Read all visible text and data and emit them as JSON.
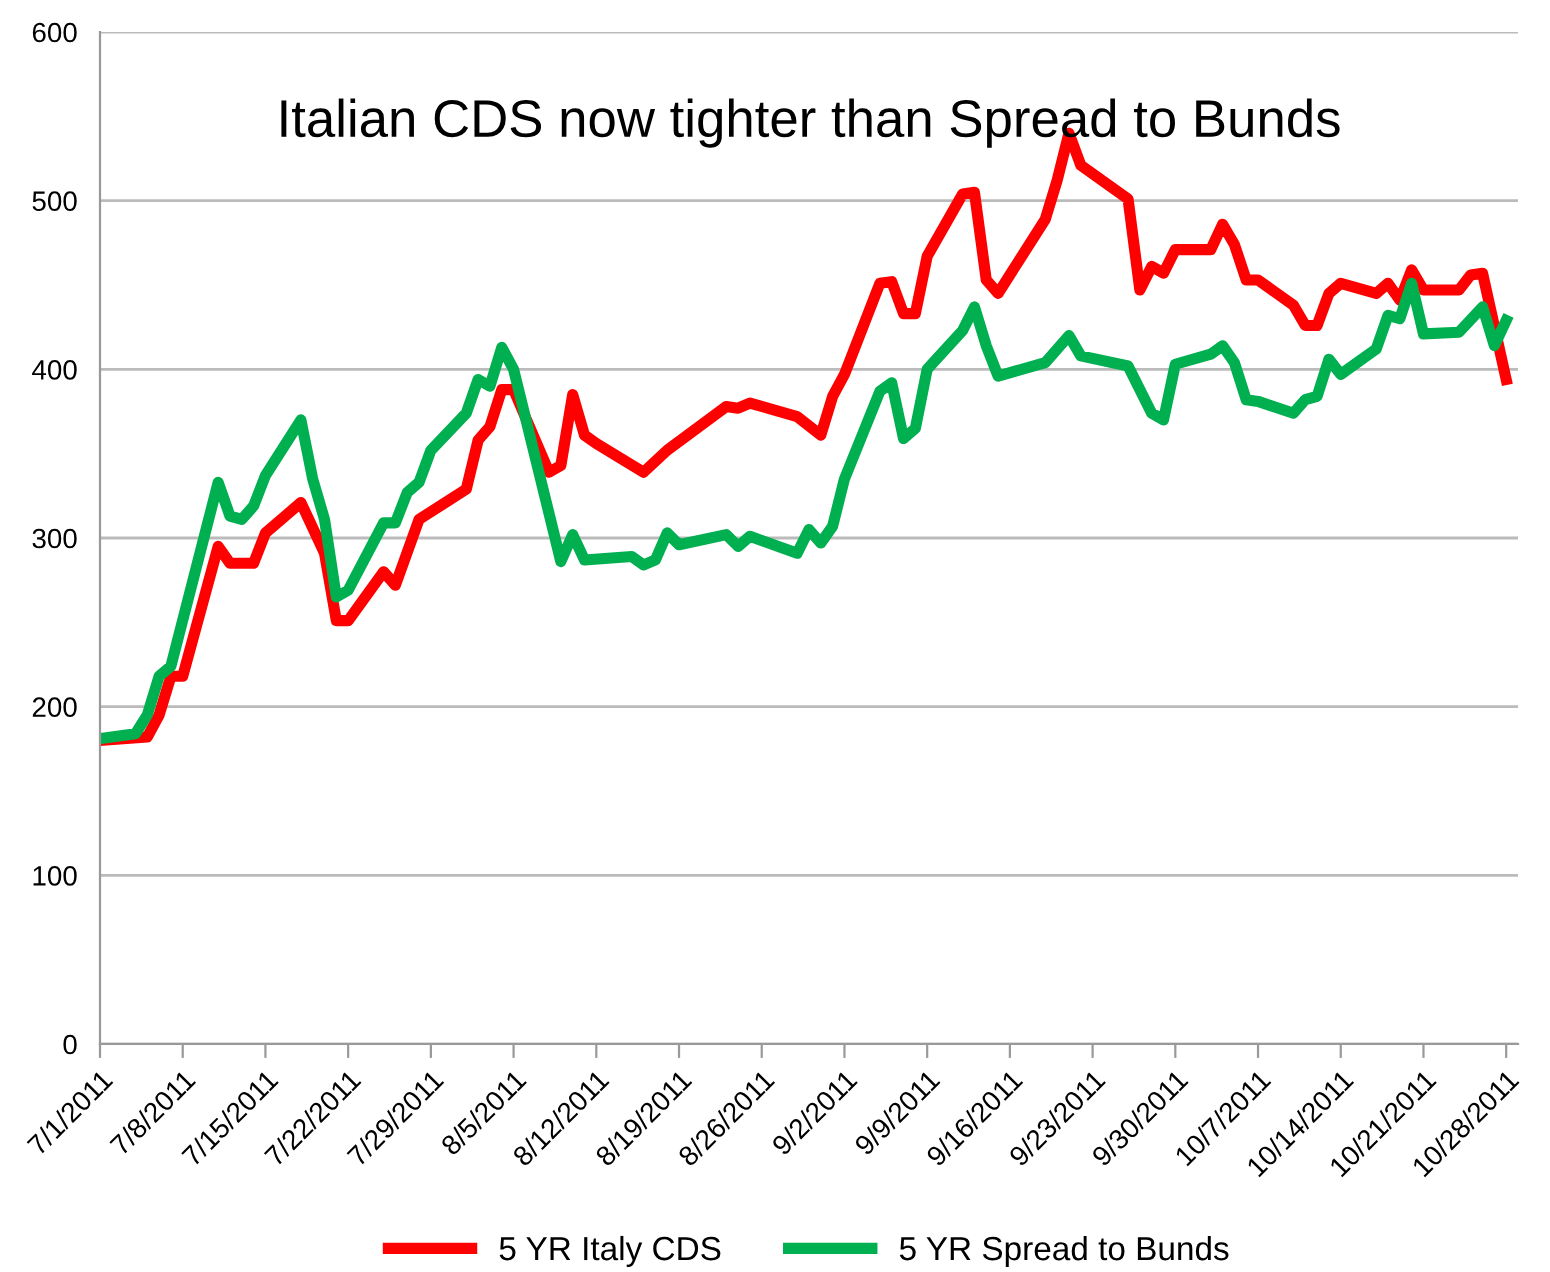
{
  "chart_data": {
    "type": "line",
    "title": "Italian CDS now tighter than Spread to Bunds",
    "x": [
      "2011-07-01",
      "2011-07-05",
      "2011-07-06",
      "2011-07-07",
      "2011-07-08",
      "2011-07-11",
      "2011-07-12",
      "2011-07-14",
      "2011-07-15",
      "2011-07-18",
      "2011-07-20",
      "2011-07-21",
      "2011-07-22",
      "2011-07-25",
      "2011-07-26",
      "2011-07-28",
      "2011-08-01",
      "2011-08-02",
      "2011-08-03",
      "2011-08-04",
      "2011-08-05",
      "2011-08-08",
      "2011-08-09",
      "2011-08-10",
      "2011-08-11",
      "2011-08-12",
      "2011-08-16",
      "2011-08-18",
      "2011-08-23",
      "2011-08-24",
      "2011-08-25",
      "2011-08-29",
      "2011-08-31",
      "2011-09-01",
      "2011-09-02",
      "2011-09-05",
      "2011-09-06",
      "2011-09-07",
      "2011-09-08",
      "2011-09-09",
      "2011-09-12",
      "2011-09-13",
      "2011-09-14",
      "2011-09-15",
      "2011-09-19",
      "2011-09-20",
      "2011-09-21",
      "2011-09-22",
      "2011-09-26",
      "2011-09-27",
      "2011-09-28",
      "2011-09-29",
      "2011-09-30",
      "2011-10-03",
      "2011-10-04",
      "2011-10-05",
      "2011-10-06",
      "2011-10-07",
      "2011-10-10",
      "2011-10-11",
      "2011-10-12",
      "2011-10-13",
      "2011-10-14",
      "2011-10-17",
      "2011-10-18",
      "2011-10-19",
      "2011-10-20",
      "2011-10-21",
      "2011-10-24",
      "2011-10-25",
      "2011-10-26",
      "2011-10-28"
    ],
    "series": [
      {
        "name": "5 YR Italy CDS",
        "color": "#ff0000",
        "values": [
          180,
          182,
          195,
          218,
          218,
          295,
          285,
          285,
          303,
          321,
          291,
          251,
          251,
          280,
          272,
          311,
          329,
          358,
          366,
          388,
          388,
          339,
          343,
          385,
          361,
          356,
          339,
          352,
          378,
          377,
          380,
          372,
          361,
          384,
          397,
          451,
          452,
          433,
          433,
          467,
          504,
          505,
          453,
          445,
          489,
          512,
          540,
          521,
          501,
          447,
          461,
          457,
          471,
          471,
          486,
          474,
          453,
          453,
          438,
          426,
          426,
          445,
          451,
          445,
          451,
          441,
          459,
          447,
          447,
          456,
          457,
          394
        ]
      },
      {
        "name": "5 YR Spread to Bunds",
        "color": "#00b050",
        "x": [
          "2011-07-01",
          "2011-07-04",
          "2011-07-05",
          "2011-07-06",
          "2011-07-07",
          "2011-07-11",
          "2011-07-12",
          "2011-07-13",
          "2011-07-14",
          "2011-07-15",
          "2011-07-18",
          "2011-07-19",
          "2011-07-20",
          "2011-07-21",
          "2011-07-22",
          "2011-07-25",
          "2011-07-26",
          "2011-07-27",
          "2011-07-28",
          "2011-07-29",
          "2011-08-01",
          "2011-08-02",
          "2011-08-03",
          "2011-08-04",
          "2011-08-05",
          "2011-08-09",
          "2011-08-10",
          "2011-08-11",
          "2011-08-15",
          "2011-08-16",
          "2011-08-17",
          "2011-08-18",
          "2011-08-19",
          "2011-08-23",
          "2011-08-24",
          "2011-08-25",
          "2011-08-29",
          "2011-08-30",
          "2011-08-31",
          "2011-09-01",
          "2011-09-02",
          "2011-09-05",
          "2011-09-06",
          "2011-09-07",
          "2011-09-08",
          "2011-09-09",
          "2011-09-12",
          "2011-09-13",
          "2011-09-14",
          "2011-09-15",
          "2011-09-19",
          "2011-09-21",
          "2011-09-22",
          "2011-09-26",
          "2011-09-28",
          "2011-09-29",
          "2011-09-30",
          "2011-10-03",
          "2011-10-04",
          "2011-10-05",
          "2011-10-06",
          "2011-10-07",
          "2011-10-10",
          "2011-10-11",
          "2011-10-12",
          "2011-10-13",
          "2011-10-14",
          "2011-10-17",
          "2011-10-18",
          "2011-10-19",
          "2011-10-20",
          "2011-10-21",
          "2011-10-24",
          "2011-10-26",
          "2011-10-27",
          "2011-10-28"
        ],
        "values": [
          181,
          184,
          195,
          218,
          224,
          333,
          313,
          311,
          319,
          337,
          370,
          335,
          311,
          265,
          269,
          309,
          309,
          327,
          333,
          352,
          374,
          394,
          390,
          413,
          400,
          286,
          302,
          287,
          289,
          284,
          287,
          303,
          296,
          302,
          295,
          301,
          291,
          305,
          297,
          307,
          335,
          387,
          392,
          359,
          365,
          400,
          423,
          437,
          414,
          396,
          404,
          420,
          408,
          402,
          374,
          370,
          403,
          409,
          414,
          404,
          382,
          381,
          374,
          382,
          384,
          406,
          397,
          412,
          432,
          430,
          451,
          421,
          422,
          437,
          414,
          429
        ]
      }
    ],
    "xlim": [
      "2011-07-01",
      "2011-10-29"
    ],
    "xticks": [
      {
        "value": "2011-07-01",
        "label": "7/1/2011"
      },
      {
        "value": "2011-07-08",
        "label": "7/8/2011"
      },
      {
        "value": "2011-07-15",
        "label": "7/15/2011"
      },
      {
        "value": "2011-07-22",
        "label": "7/22/2011"
      },
      {
        "value": "2011-07-29",
        "label": "7/29/2011"
      },
      {
        "value": "2011-08-05",
        "label": "8/5/2011"
      },
      {
        "value": "2011-08-12",
        "label": "8/12/2011"
      },
      {
        "value": "2011-08-19",
        "label": "8/19/2011"
      },
      {
        "value": "2011-08-26",
        "label": "8/26/2011"
      },
      {
        "value": "2011-09-02",
        "label": "9/2/2011"
      },
      {
        "value": "2011-09-09",
        "label": "9/9/2011"
      },
      {
        "value": "2011-09-16",
        "label": "9/16/2011"
      },
      {
        "value": "2011-09-23",
        "label": "9/23/2011"
      },
      {
        "value": "2011-09-30",
        "label": "9/30/2011"
      },
      {
        "value": "2011-10-07",
        "label": "10/7/2011"
      },
      {
        "value": "2011-10-14",
        "label": "10/14/2011"
      },
      {
        "value": "2011-10-21",
        "label": "10/21/2011"
      },
      {
        "value": "2011-10-28",
        "label": "10/28/2011"
      }
    ],
    "ylim": [
      0,
      600
    ],
    "yticks": [
      0,
      100,
      200,
      300,
      400,
      500,
      600
    ],
    "grid": "y",
    "legend": "bottom",
    "marker": "none",
    "line_style": "solid"
  }
}
